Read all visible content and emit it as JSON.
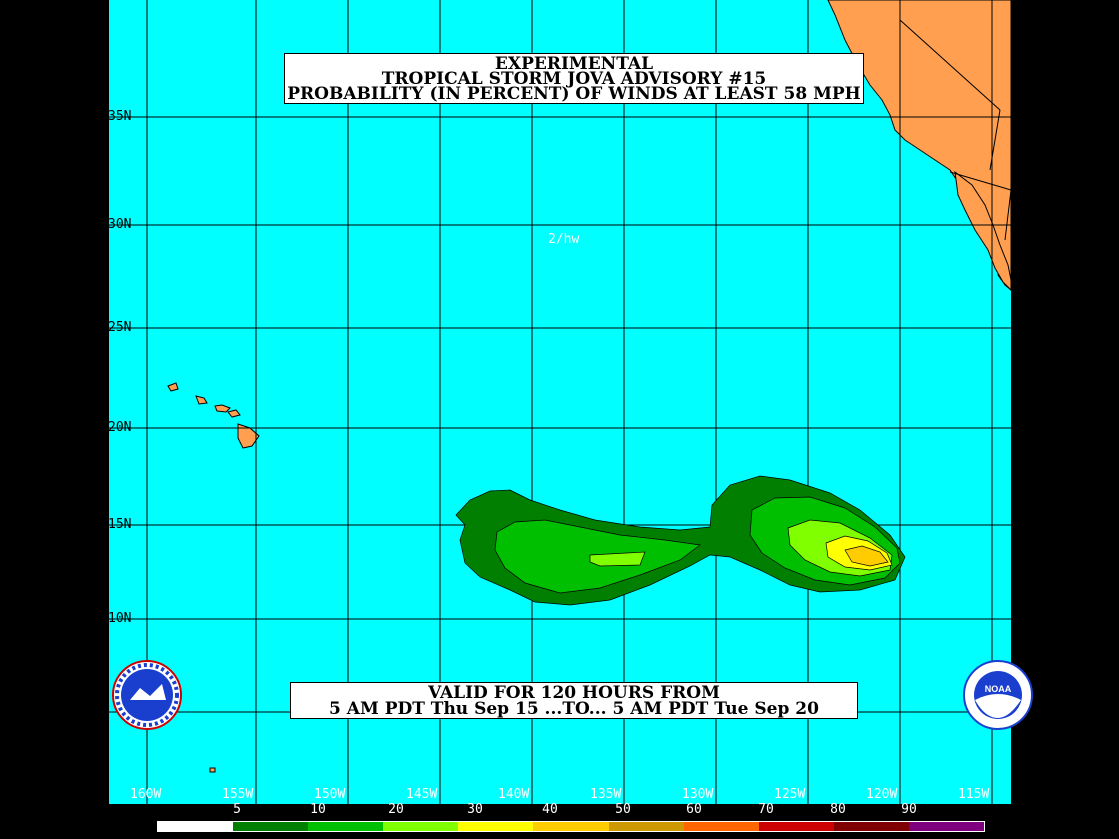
{
  "title": {
    "line1": "EXPERIMENTAL",
    "line2": "TROPICAL STORM JOVA ADVISORY #15",
    "line3": "PROBABILITY (IN PERCENT) OF WINDS AT LEAST 58 MPH"
  },
  "valid": {
    "line1": "VALID FOR 120 HOURS FROM",
    "line2": "5 AM PDT Thu Sep 15 ...TO... 5 AM PDT Tue Sep 20"
  },
  "credit": "2/hw",
  "lat_labels": [
    "35N",
    "30N",
    "25N",
    "20N",
    "15N",
    "10N"
  ],
  "lon_labels": [
    "160W",
    "155W",
    "150W",
    "145W",
    "140W",
    "135W",
    "130W",
    "125W",
    "120W",
    "115W"
  ],
  "legend": {
    "values": [
      "5",
      "10",
      "20",
      "30",
      "40",
      "50",
      "60",
      "70",
      "80",
      "90"
    ],
    "colors": [
      "#ffffff",
      "#007f00",
      "#00bf00",
      "#7fff00",
      "#ffff00",
      "#ffcc00",
      "#cc9900",
      "#ff6600",
      "#cc0000",
      "#7f0000",
      "#7f007f"
    ]
  },
  "colors": {
    "ocean": "#00ffff",
    "land": "#ff9f4f",
    "grid": "#000000"
  },
  "icons": {
    "left_logo": "national-weather-service-logo",
    "right_logo": "noaa-logo"
  }
}
